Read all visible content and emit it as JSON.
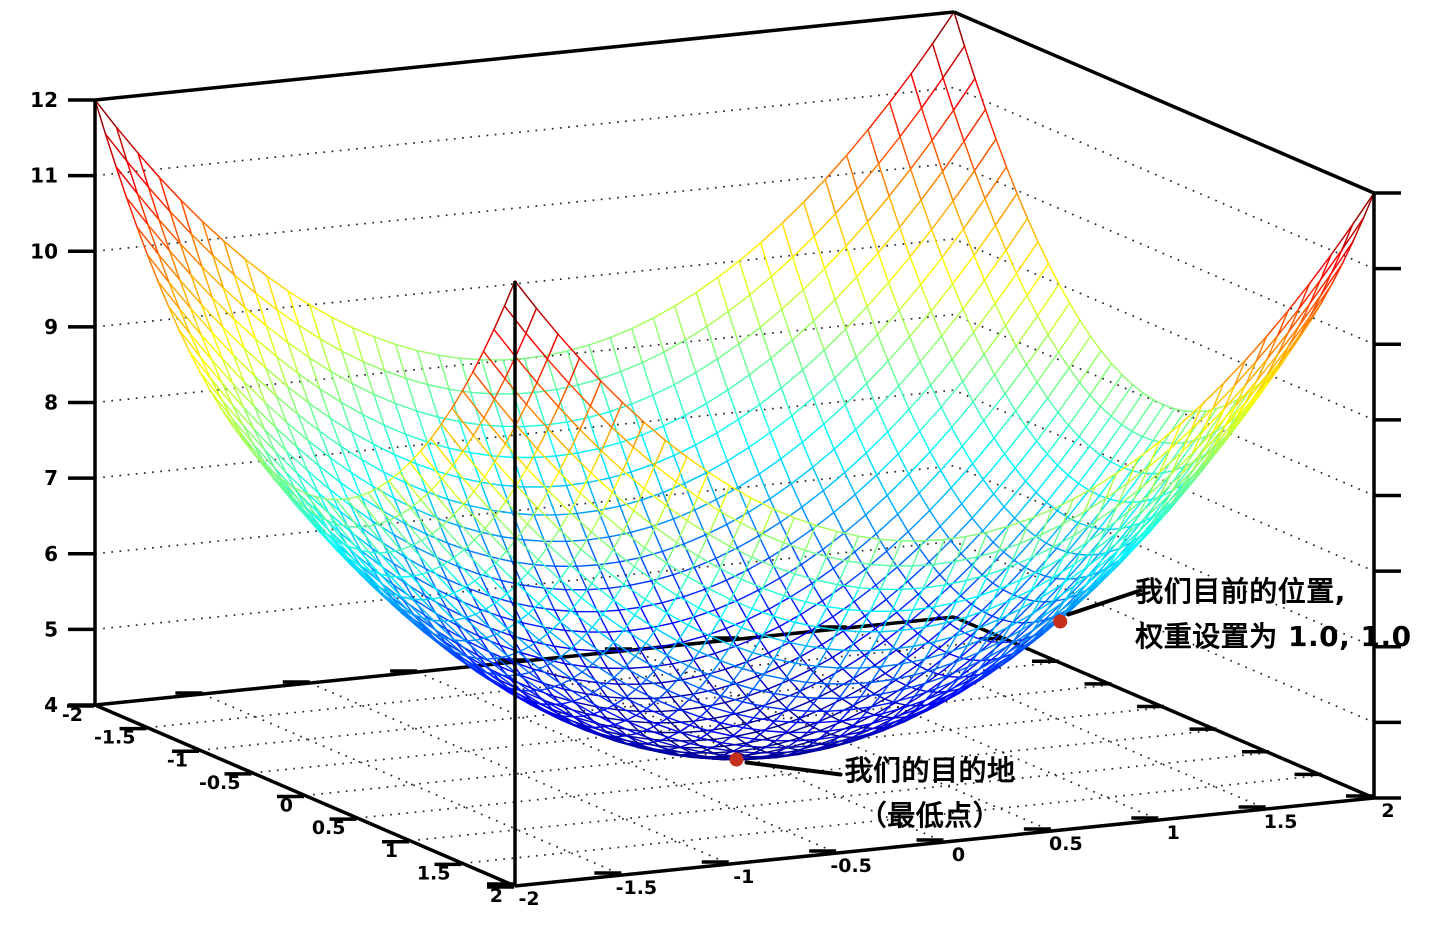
{
  "chart_data": {
    "type": "surface",
    "surface_function": "z = x^2 + y^2 + 4",
    "x_range": [
      -2,
      2
    ],
    "y_range": [
      -2,
      2
    ],
    "z_range": [
      4,
      12
    ],
    "mesh_step": 0.1,
    "colormap": "jet",
    "grid": true,
    "x_tick_labels": [
      "-2",
      "-1.5",
      "-1",
      "-0.5",
      "0",
      "0.5",
      "1",
      "1.5",
      "2"
    ],
    "y_tick_labels": [
      "-2",
      "-1.5",
      "-1",
      "-0.5",
      "0",
      "0.5",
      "1",
      "1.5",
      "2"
    ],
    "z_tick_labels": [
      "4",
      "5",
      "6",
      "7",
      "8",
      "9",
      "10",
      "11",
      "12"
    ],
    "background": "#ffffff",
    "axis_color": "#000000",
    "marker_color": "#c5301d",
    "annotations": [
      {
        "id": "current-position",
        "point": {
          "x": 1.0,
          "y": 1.0,
          "z": 6.0
        },
        "lines": [
          "我们目前的位置,",
          "权重设置为 1.0, 1.0"
        ]
      },
      {
        "id": "destination",
        "point": {
          "x": 0.0,
          "y": 0.0,
          "z": 4.0
        },
        "lines": [
          "我们的目的地",
          "（最低点）"
        ]
      }
    ]
  }
}
